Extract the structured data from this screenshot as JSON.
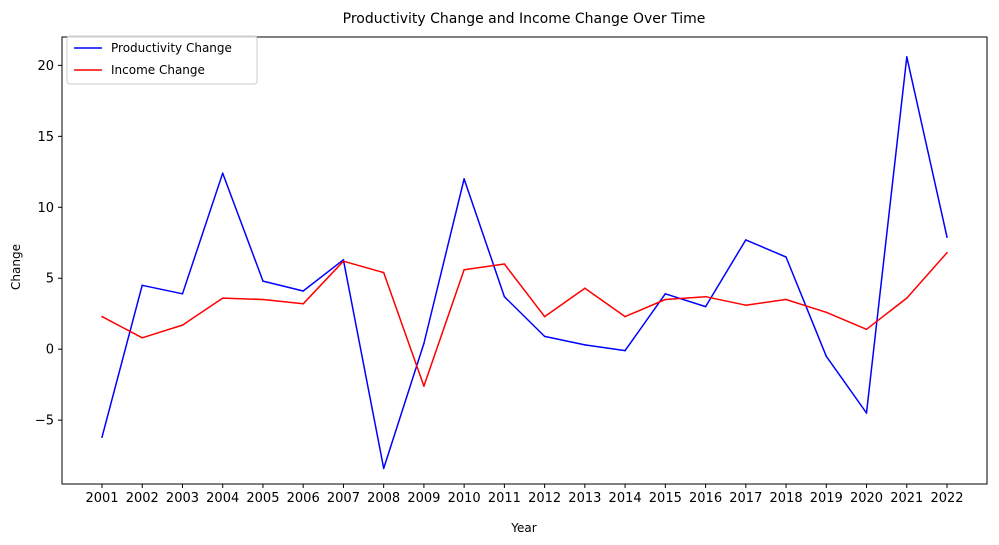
{
  "chart_data": {
    "type": "line",
    "title": "Productivity Change and Income Change Over Time",
    "xlabel": "Year",
    "ylabel": "Change",
    "x": [
      "2001",
      "2002",
      "2003",
      "2004",
      "2005",
      "2006",
      "2007",
      "2008",
      "2009",
      "2010",
      "2011",
      "2012",
      "2013",
      "2014",
      "2015",
      "2016",
      "2017",
      "2018",
      "2019",
      "2020",
      "2021",
      "2022"
    ],
    "ylim": [
      -9.5,
      22
    ],
    "yticks": [
      -5,
      0,
      5,
      10,
      15,
      20
    ],
    "ytick_labels": [
      "−5",
      "0",
      "5",
      "10",
      "15",
      "20"
    ],
    "grid": false,
    "legend": "top-left",
    "series": [
      {
        "name": "Productivity Change",
        "color": "#0000ff",
        "values": [
          -6.2,
          4.5,
          3.9,
          12.4,
          4.8,
          4.1,
          6.3,
          -8.4,
          0.4,
          12.0,
          3.7,
          0.9,
          0.3,
          -0.1,
          3.9,
          3.0,
          7.7,
          6.5,
          -0.5,
          -4.5,
          20.6,
          7.9
        ]
      },
      {
        "name": "Income Change",
        "color": "#ff0000",
        "values": [
          2.3,
          0.8,
          1.7,
          3.6,
          3.5,
          3.2,
          6.2,
          5.4,
          -2.6,
          5.6,
          6.0,
          2.3,
          4.3,
          2.3,
          3.5,
          3.7,
          3.1,
          3.5,
          2.6,
          1.4,
          3.6,
          6.8
        ]
      }
    ]
  }
}
